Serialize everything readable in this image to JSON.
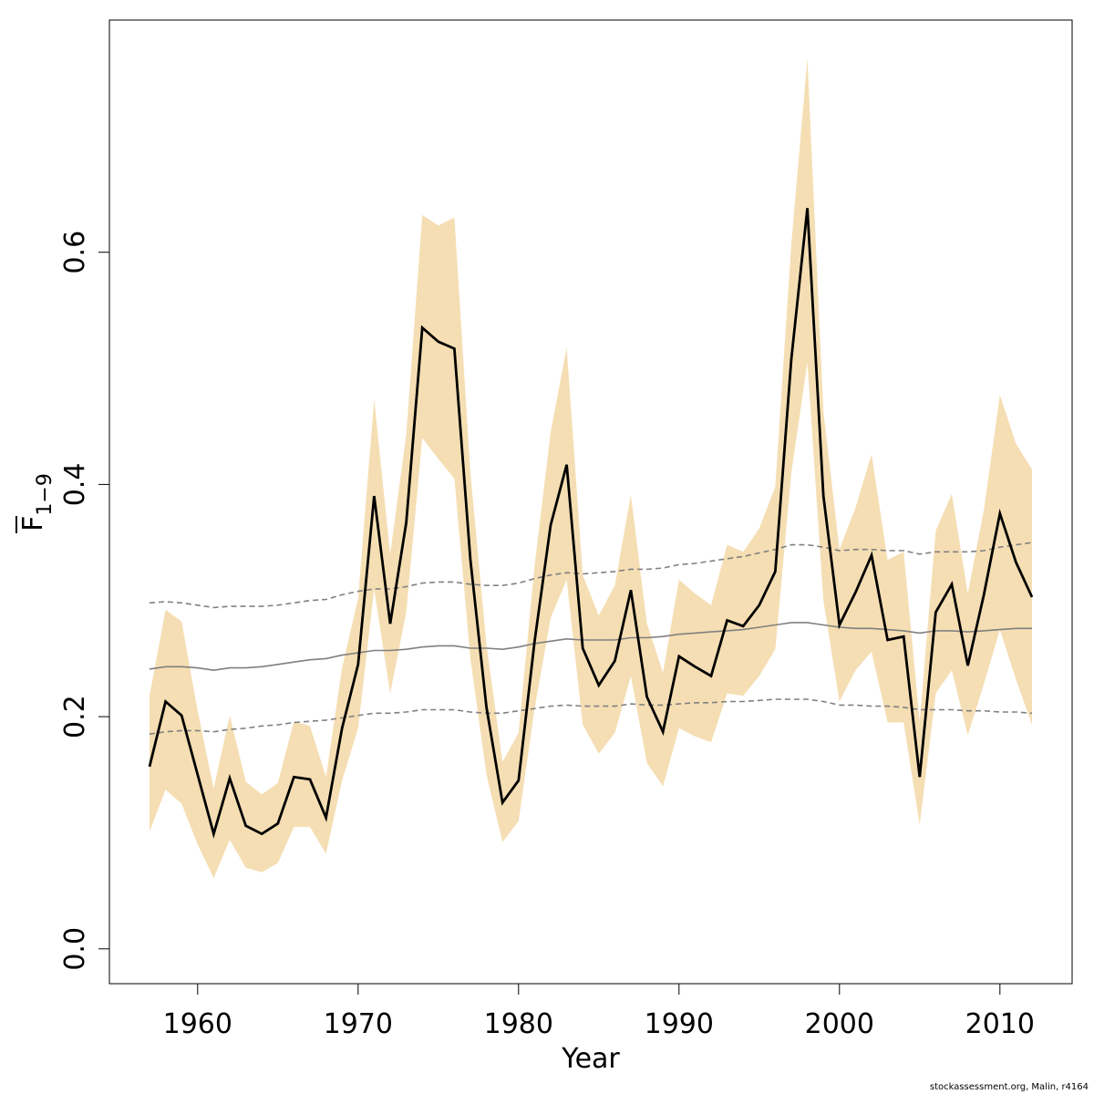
{
  "chart_data": {
    "type": "line",
    "title": "",
    "xlabel": "Year",
    "ylabel": {
      "main": "F",
      "subscript": "1−9",
      "overline": true
    },
    "xlim": [
      1954.5,
      2014.5
    ],
    "ylim": [
      -0.03,
      0.8
    ],
    "x_ticks": [
      1960,
      1970,
      1980,
      1990,
      2000,
      2010
    ],
    "y_ticks": [
      0.0,
      0.2,
      0.4,
      0.6
    ],
    "y_tick_labels": [
      "0.0",
      "0.2",
      "0.4",
      "0.6"
    ],
    "grid": false,
    "legend": "none",
    "colors": {
      "band": "#f5deb3",
      "estimate": "#000000",
      "reference": "#808080"
    },
    "x": [
      1957,
      1958,
      1959,
      1960,
      1961,
      1962,
      1963,
      1964,
      1965,
      1966,
      1967,
      1968,
      1969,
      1970,
      1971,
      1972,
      1973,
      1974,
      1975,
      1976,
      1977,
      1978,
      1979,
      1980,
      1981,
      1982,
      1983,
      1984,
      1985,
      1986,
      1987,
      1988,
      1989,
      1990,
      1991,
      1992,
      1993,
      1994,
      1995,
      1996,
      1997,
      1998,
      1999,
      2000,
      2001,
      2002,
      2003,
      2004,
      2005,
      2006,
      2007,
      2008,
      2009,
      2010,
      2011,
      2012
    ],
    "series": [
      {
        "role": "estimate",
        "values": [
          0.157,
          0.213,
          0.201,
          0.15,
          0.099,
          0.147,
          0.106,
          0.099,
          0.108,
          0.148,
          0.146,
          0.113,
          0.19,
          0.245,
          0.39,
          0.28,
          0.367,
          0.535,
          0.523,
          0.517,
          0.335,
          0.208,
          0.126,
          0.145,
          0.265,
          0.365,
          0.417,
          0.259,
          0.227,
          0.248,
          0.309,
          0.217,
          0.187,
          0.252,
          0.243,
          0.235,
          0.283,
          0.278,
          0.296,
          0.325,
          0.508,
          0.638,
          0.39,
          0.279,
          0.307,
          0.339,
          0.266,
          0.269,
          0.148,
          0.29,
          0.314,
          0.244,
          0.305,
          0.375,
          0.333,
          0.303
        ]
      },
      {
        "role": "band_upper",
        "values": [
          0.218,
          0.292,
          0.282,
          0.205,
          0.138,
          0.201,
          0.144,
          0.133,
          0.143,
          0.196,
          0.192,
          0.148,
          0.242,
          0.302,
          0.473,
          0.34,
          0.443,
          0.632,
          0.623,
          0.63,
          0.41,
          0.262,
          0.161,
          0.186,
          0.33,
          0.445,
          0.518,
          0.322,
          0.287,
          0.313,
          0.391,
          0.28,
          0.238,
          0.318,
          0.306,
          0.296,
          0.348,
          0.342,
          0.362,
          0.398,
          0.607,
          0.767,
          0.463,
          0.344,
          0.38,
          0.426,
          0.335,
          0.342,
          0.196,
          0.36,
          0.392,
          0.306,
          0.378,
          0.477,
          0.435,
          0.413
        ]
      },
      {
        "role": "band_lower",
        "values": [
          0.101,
          0.137,
          0.125,
          0.09,
          0.061,
          0.094,
          0.07,
          0.066,
          0.074,
          0.105,
          0.105,
          0.082,
          0.145,
          0.19,
          0.31,
          0.22,
          0.29,
          0.44,
          0.422,
          0.405,
          0.25,
          0.15,
          0.092,
          0.11,
          0.207,
          0.285,
          0.318,
          0.193,
          0.168,
          0.186,
          0.235,
          0.16,
          0.14,
          0.19,
          0.183,
          0.178,
          0.22,
          0.218,
          0.235,
          0.258,
          0.41,
          0.505,
          0.3,
          0.213,
          0.24,
          0.256,
          0.195,
          0.195,
          0.107,
          0.22,
          0.24,
          0.184,
          0.228,
          0.275,
          0.232,
          0.193
        ]
      },
      {
        "role": "reference_median",
        "values": [
          0.241,
          0.243,
          0.243,
          0.242,
          0.24,
          0.242,
          0.242,
          0.243,
          0.245,
          0.247,
          0.249,
          0.25,
          0.253,
          0.255,
          0.257,
          0.257,
          0.258,
          0.26,
          0.261,
          0.261,
          0.259,
          0.259,
          0.258,
          0.26,
          0.263,
          0.265,
          0.267,
          0.266,
          0.266,
          0.266,
          0.268,
          0.268,
          0.269,
          0.271,
          0.272,
          0.273,
          0.274,
          0.275,
          0.277,
          0.279,
          0.281,
          0.281,
          0.279,
          0.277,
          0.276,
          0.276,
          0.275,
          0.274,
          0.272,
          0.274,
          0.274,
          0.273,
          0.274,
          0.275,
          0.276,
          0.276
        ]
      },
      {
        "role": "reference_upper",
        "values": [
          0.298,
          0.299,
          0.298,
          0.296,
          0.294,
          0.295,
          0.295,
          0.295,
          0.296,
          0.298,
          0.3,
          0.301,
          0.305,
          0.308,
          0.31,
          0.31,
          0.312,
          0.315,
          0.316,
          0.316,
          0.314,
          0.313,
          0.313,
          0.315,
          0.319,
          0.322,
          0.324,
          0.323,
          0.324,
          0.325,
          0.327,
          0.327,
          0.328,
          0.331,
          0.332,
          0.334,
          0.336,
          0.338,
          0.341,
          0.344,
          0.348,
          0.348,
          0.346,
          0.343,
          0.344,
          0.344,
          0.343,
          0.343,
          0.34,
          0.342,
          0.342,
          0.342,
          0.343,
          0.346,
          0.348,
          0.35
        ]
      },
      {
        "role": "reference_lower",
        "values": [
          0.185,
          0.187,
          0.188,
          0.188,
          0.187,
          0.189,
          0.19,
          0.192,
          0.193,
          0.195,
          0.196,
          0.197,
          0.199,
          0.201,
          0.203,
          0.203,
          0.204,
          0.206,
          0.206,
          0.206,
          0.204,
          0.203,
          0.203,
          0.205,
          0.207,
          0.209,
          0.21,
          0.209,
          0.209,
          0.209,
          0.211,
          0.21,
          0.21,
          0.211,
          0.212,
          0.212,
          0.213,
          0.213,
          0.214,
          0.215,
          0.215,
          0.215,
          0.213,
          0.21,
          0.21,
          0.209,
          0.209,
          0.208,
          0.206,
          0.206,
          0.206,
          0.205,
          0.205,
          0.204,
          0.204,
          0.203
        ]
      }
    ]
  },
  "credit": "stockassessment.org, Malin, r4164"
}
